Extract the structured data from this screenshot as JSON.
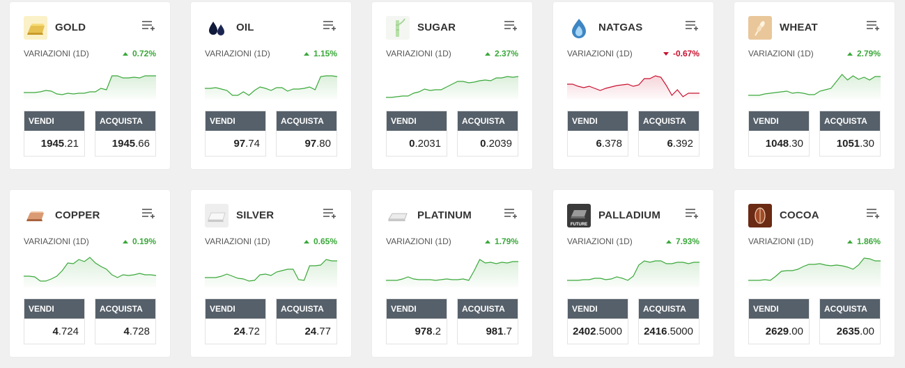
{
  "assets": [
    {
      "name": "GOLD",
      "icon": "gold-bar-icon",
      "change_label": "VARIAZIONI (1D)",
      "change": "0.72%",
      "direction": "up",
      "sell_label": "VENDI",
      "buy_label": "ACQUISTA",
      "sell_main": "1945",
      "sell_dec": ".21",
      "buy_main": "1945",
      "buy_dec": ".66",
      "trend": [
        36,
        36,
        36,
        35,
        33,
        34,
        38,
        39,
        37,
        38,
        37,
        37,
        35,
        35,
        30,
        32,
        12,
        12,
        15,
        15,
        14,
        15,
        12,
        12,
        12
      ]
    },
    {
      "name": "OIL",
      "icon": "oil-drops-icon",
      "change_label": "VARIAZIONI (1D)",
      "change": "1.15%",
      "direction": "up",
      "sell_label": "VENDI",
      "buy_label": "ACQUISTA",
      "sell_main": "97",
      "sell_dec": ".74",
      "buy_main": "97",
      "buy_dec": ".80",
      "trend": [
        30,
        30,
        29,
        31,
        33,
        40,
        40,
        35,
        40,
        33,
        28,
        30,
        33,
        29,
        29,
        34,
        31,
        31,
        30,
        28,
        32,
        13,
        12,
        12,
        13
      ]
    },
    {
      "name": "SUGAR",
      "icon": "sugar-cane-icon",
      "change_label": "VARIAZIONI (1D)",
      "change": "2.37%",
      "direction": "up",
      "sell_label": "VENDI",
      "buy_label": "ACQUISTA",
      "sell_main": "0",
      "sell_dec": ".2031",
      "buy_main": "0",
      "buy_dec": ".2039",
      "trend": [
        43,
        43,
        42,
        41,
        41,
        37,
        35,
        31,
        33,
        32,
        32,
        28,
        24,
        20,
        20,
        22,
        21,
        19,
        18,
        19,
        15,
        15,
        13,
        14,
        13
      ]
    },
    {
      "name": "NATGAS",
      "icon": "gas-flame-icon",
      "change_label": "VARIAZIONI (1D)",
      "change": "-0.67%",
      "direction": "down",
      "sell_label": "VENDI",
      "buy_label": "ACQUISTA",
      "sell_main": "6",
      "sell_dec": ".378",
      "buy_main": "6",
      "buy_dec": ".392",
      "trend": [
        24,
        24,
        27,
        29,
        27,
        30,
        33,
        30,
        28,
        26,
        25,
        24,
        27,
        25,
        16,
        16,
        12,
        14,
        26,
        40,
        32,
        42,
        37,
        37,
        37
      ]
    },
    {
      "name": "WHEAT",
      "icon": "wheat-icon",
      "change_label": "VARIAZIONI (1D)",
      "change": "2.79%",
      "direction": "up",
      "sell_label": "VENDI",
      "buy_label": "ACQUISTA",
      "sell_main": "1048",
      "sell_dec": ".30",
      "buy_main": "1051",
      "buy_dec": ".30",
      "trend": [
        40,
        40,
        40,
        38,
        37,
        36,
        35,
        34,
        37,
        36,
        37,
        39,
        39,
        34,
        32,
        30,
        20,
        10,
        18,
        12,
        17,
        14,
        18,
        13,
        13
      ]
    },
    {
      "name": "COPPER",
      "icon": "copper-bar-icon",
      "change_label": "VARIAZIONI (1D)",
      "change": "0.19%",
      "direction": "up",
      "sell_label": "VENDI",
      "buy_label": "ACQUISTA",
      "sell_main": "4",
      "sell_dec": ".724",
      "buy_main": "4",
      "buy_dec": ".728",
      "trend": [
        30,
        30,
        31,
        37,
        37,
        34,
        30,
        22,
        11,
        12,
        6,
        9,
        3,
        11,
        16,
        20,
        28,
        32,
        28,
        29,
        28,
        26,
        28,
        28,
        29
      ]
    },
    {
      "name": "SILVER",
      "icon": "silver-bar-icon",
      "change_label": "VARIAZIONI (1D)",
      "change": "0.65%",
      "direction": "up",
      "sell_label": "VENDI",
      "buy_label": "ACQUISTA",
      "sell_main": "24",
      "sell_dec": ".72",
      "buy_main": "24",
      "buy_dec": ".77",
      "trend": [
        32,
        32,
        32,
        30,
        27,
        30,
        33,
        34,
        37,
        36,
        28,
        27,
        29,
        24,
        22,
        20,
        20,
        35,
        36,
        15,
        15,
        14,
        6,
        8,
        8
      ]
    },
    {
      "name": "PLATINUM",
      "icon": "platinum-bar-icon",
      "change_label": "VARIAZIONI (1D)",
      "change": "1.79%",
      "direction": "up",
      "sell_label": "VENDI",
      "buy_label": "ACQUISTA",
      "sell_main": "978",
      "sell_dec": ".2",
      "buy_main": "981",
      "buy_dec": ".7",
      "trend": [
        36,
        36,
        36,
        34,
        31,
        34,
        35,
        35,
        35,
        36,
        35,
        34,
        35,
        35,
        34,
        36,
        22,
        6,
        11,
        10,
        12,
        10,
        11,
        9,
        9
      ]
    },
    {
      "name": "PALLADIUM",
      "icon": "palladium-future-icon",
      "change_label": "VARIAZIONI (1D)",
      "change": "7.93%",
      "direction": "up",
      "sell_label": "VENDI",
      "buy_label": "ACQUISTA",
      "sell_main": "2402",
      "sell_dec": ".5000",
      "buy_main": "2416",
      "buy_dec": ".5000",
      "trend": [
        36,
        36,
        36,
        35,
        35,
        33,
        33,
        35,
        34,
        31,
        33,
        36,
        30,
        14,
        8,
        10,
        8,
        8,
        12,
        12,
        10,
        10,
        12,
        10,
        10
      ]
    },
    {
      "name": "COCOA",
      "icon": "cocoa-pod-icon",
      "change_label": "VARIAZIONI (1D)",
      "change": "1.86%",
      "direction": "up",
      "sell_label": "VENDI",
      "buy_label": "ACQUISTA",
      "sell_main": "2629",
      "sell_dec": ".00",
      "buy_main": "2635",
      "buy_dec": ".00",
      "trend": [
        36,
        36,
        36,
        35,
        36,
        30,
        23,
        22,
        22,
        20,
        16,
        13,
        13,
        12,
        14,
        15,
        14,
        15,
        17,
        20,
        14,
        4,
        5,
        8,
        8
      ]
    }
  ],
  "colors": {
    "up": "#3aa83a",
    "down": "#c8102e",
    "button_header": "#56606a"
  }
}
